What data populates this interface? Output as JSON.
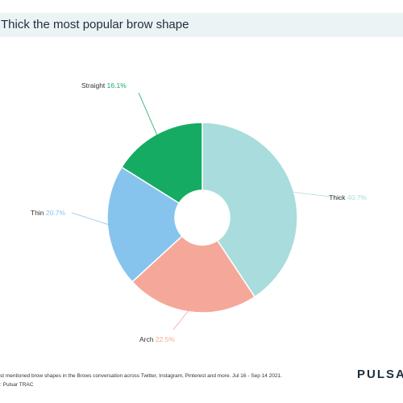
{
  "title": "Thick the most popular brow shape",
  "footer": {
    "line1": "st mentioned brow shapes in the Brows conversation across Twitter, Instagram, Pinterest and more. Jul 16 - Sep 14 2021.",
    "line2": ": Pulsar TRAC"
  },
  "brand": "PULSAR",
  "chart_data": {
    "type": "pie",
    "title": "Thick the most popular brow shape",
    "donut": true,
    "series": [
      {
        "name": "Thick",
        "value": 40.7,
        "label": "40.7%",
        "color": "#a9dcdc"
      },
      {
        "name": "Arch",
        "value": 22.5,
        "label": "22.5%",
        "color": "#f5a899"
      },
      {
        "name": "Thin",
        "value": 20.7,
        "label": "20.7%",
        "color": "#86c4ee"
      },
      {
        "name": "Straight",
        "value": 16.1,
        "label": "16.1%",
        "color": "#16ab62"
      }
    ]
  }
}
